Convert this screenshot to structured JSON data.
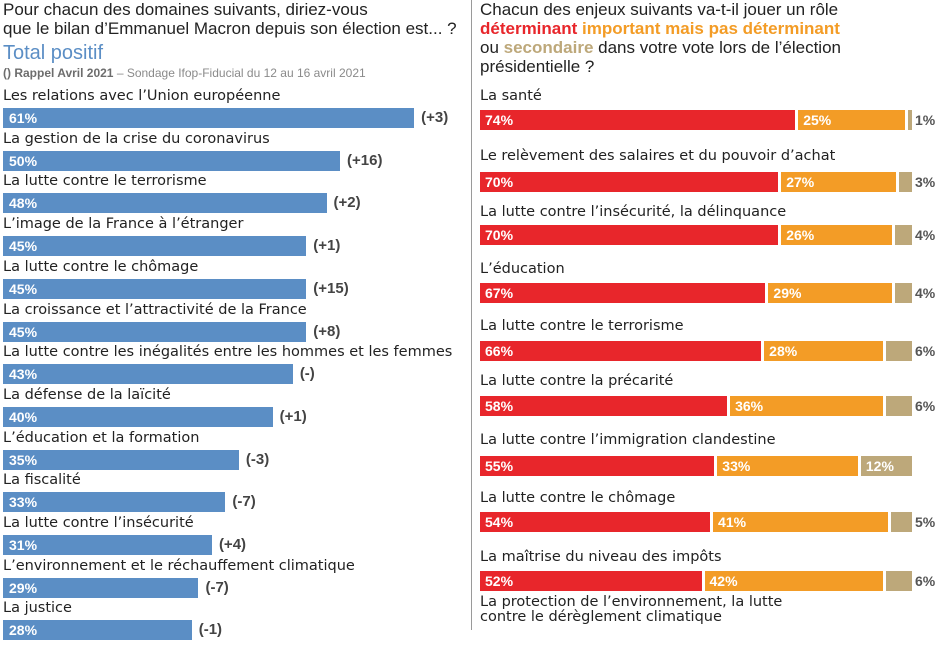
{
  "left": {
    "title_line1": "Pour chacun des domaines suivants, diriez-vous",
    "title_line2": "que le bilan d’Emmanuel Macron depuis son élection est... ?",
    "subtitle": "Total positif",
    "note_bold": "() Rappel Avril 2021",
    "note_rest": " – Sondage Ifop-Fiducial du 12 au 16 avril 2021"
  },
  "right": {
    "title_line1": "Chacun des enjeux suivants va-t-il jouer un rôle",
    "legend_determinant": "déterminant",
    "legend_important": "important mais pas déterminant",
    "title_ou": "ou ",
    "legend_secondaire": "secondaire",
    "title_rest2": " dans votre vote lors de l’élection",
    "title_line4": "présidentielle ?"
  },
  "colors": {
    "blue": "#5b8ec5",
    "determinant": "#e8262b",
    "important": "#f39c26",
    "secondaire": "#bda87a"
  },
  "chart_data": [
    {
      "type": "bar",
      "orientation": "horizontal",
      "title": "Total positif",
      "unit": "%",
      "xlim": [
        0,
        70
      ],
      "categories": [
        "Les relations avec l’Union européenne",
        "La gestion de la crise du coronavirus",
        "La lutte contre le terrorisme",
        "L’image de la France à l’étranger",
        "La lutte contre le chômage",
        "La croissance et l’attractivité de la France",
        "La lutte contre les inégalités entre les hommes et les femmes",
        "La défense de la laïcité",
        "L’éducation et la formation",
        "La fiscalité",
        "La lutte contre l’insécurité",
        "L’environnement et le réchauffement climatique",
        "La justice"
      ],
      "values": [
        61,
        50,
        48,
        45,
        45,
        45,
        43,
        40,
        35,
        33,
        31,
        29,
        28
      ],
      "value_labels": [
        "61%",
        "50%",
        "48%",
        "45%",
        "45%",
        "45%",
        "43%",
        "40%",
        "35%",
        "33%",
        "31%",
        "29%",
        "28%"
      ],
      "changes": [
        "(+3)",
        "(+16)",
        "(+2)",
        "(+1)",
        "(+15)",
        "(+8)",
        "(-)",
        "(+1)",
        "(-3)",
        "(-7)",
        "(+4)",
        "(-7)",
        "(-1)"
      ]
    },
    {
      "type": "bar",
      "orientation": "horizontal",
      "stacked": true,
      "unit": "%",
      "xlim": [
        0,
        100
      ],
      "categories": [
        "La santé",
        "Le relèvement des salaires et du pouvoir d’achat",
        "La lutte contre l’insécurité, la délinquance",
        "L’éducation",
        "La lutte contre le terrorisme",
        "La lutte contre la précarité",
        "La lutte contre l’immigration clandestine",
        "La lutte contre le chômage",
        "La maîtrise du niveau des impôts",
        "La protection de l’environnement, la lutte contre le dérèglement climatique"
      ],
      "series": [
        {
          "name": "déterminant",
          "values": [
            74,
            70,
            70,
            67,
            66,
            58,
            55,
            54,
            52,
            null
          ]
        },
        {
          "name": "important mais pas déterminant",
          "values": [
            25,
            27,
            26,
            29,
            28,
            36,
            33,
            41,
            42,
            null
          ]
        },
        {
          "name": "secondaire",
          "values": [
            1,
            3,
            4,
            4,
            6,
            6,
            12,
            5,
            6,
            null
          ]
        }
      ],
      "value_labels": [
        [
          "74%",
          "25%",
          "1%"
        ],
        [
          "70%",
          "27%",
          "3%"
        ],
        [
          "70%",
          "26%",
          "4%"
        ],
        [
          "67%",
          "29%",
          "4%"
        ],
        [
          "66%",
          "28%",
          "6%"
        ],
        [
          "58%",
          "36%",
          "6%"
        ],
        [
          "55%",
          "33%",
          "12%"
        ],
        [
          "54%",
          "41%",
          "5%"
        ],
        [
          "52%",
          "42%",
          "6%"
        ],
        [
          "",
          "",
          ""
        ]
      ]
    }
  ]
}
